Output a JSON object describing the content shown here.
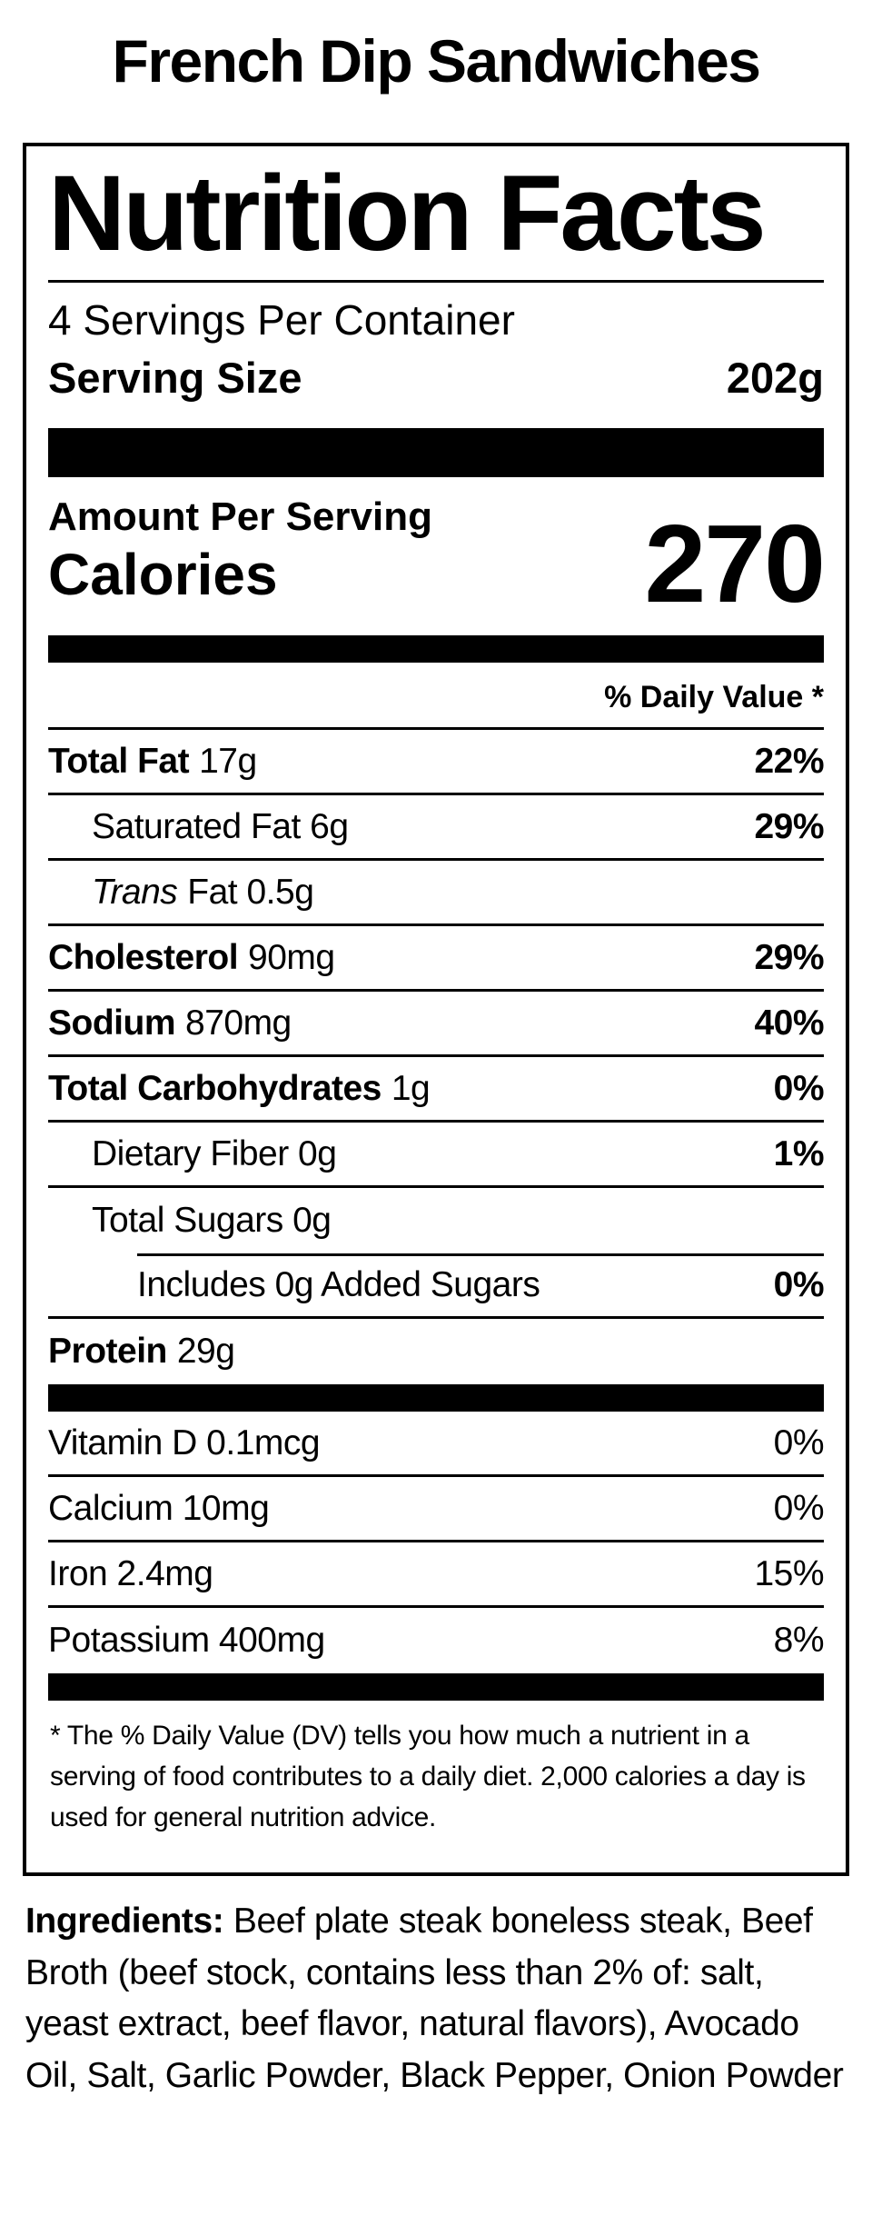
{
  "colors": {
    "text": "#000000",
    "background": "#ffffff"
  },
  "page_title": "French Dip Sandwiches",
  "label": {
    "heading": "Nutrition Facts",
    "servings_per_container": "4 Servings Per Container",
    "serving_size_label": "Serving Size",
    "serving_size_value": "202g",
    "amount_per_serving": "Amount Per Serving",
    "calories_label": "Calories",
    "calories_value": "270",
    "daily_value_header": "% Daily Value *",
    "rows": [
      {
        "strong": "Total Fat",
        "text": "17g",
        "value": "22%"
      },
      {
        "text": "Saturated Fat 6g",
        "value": "29%"
      },
      {
        "italic": "Trans",
        "text": "Fat 0.5g",
        "value": ""
      },
      {
        "strong": "Cholesterol",
        "text": "90mg",
        "value": "29%"
      },
      {
        "strong": "Sodium",
        "text": "870mg",
        "value": "40%"
      },
      {
        "strong": "Total Carbohydrates",
        "text": "1g",
        "value": "0%"
      },
      {
        "text": "Dietary Fiber 0g",
        "value": "1%"
      },
      {
        "text": "Total Sugars 0g",
        "value": ""
      },
      {
        "text": "Includes 0g Added Sugars",
        "value": "0%"
      },
      {
        "strong": "Protein",
        "text": "29g",
        "value": ""
      }
    ],
    "vitamins": [
      {
        "text": "Vitamin D 0.1mcg",
        "value": "0%"
      },
      {
        "text": "Calcium 10mg",
        "value": "0%"
      },
      {
        "text": "Iron 2.4mg",
        "value": "15%"
      },
      {
        "text": "Potassium 400mg",
        "value": "8%"
      }
    ],
    "footnote": "* The % Daily Value (DV) tells you how much a nutrient in a serving of food contributes to a daily diet. 2,000 calories a day is used for general nutrition advice."
  },
  "ingredients": {
    "label": "Ingredients:",
    "text": " Beef plate steak boneless steak, Beef Broth (beef stock, contains less than 2% of: salt, yeast extract, beef flavor, natural flavors), Avocado Oil, Salt, Garlic Powder, Black Pepper, Onion Powder"
  }
}
